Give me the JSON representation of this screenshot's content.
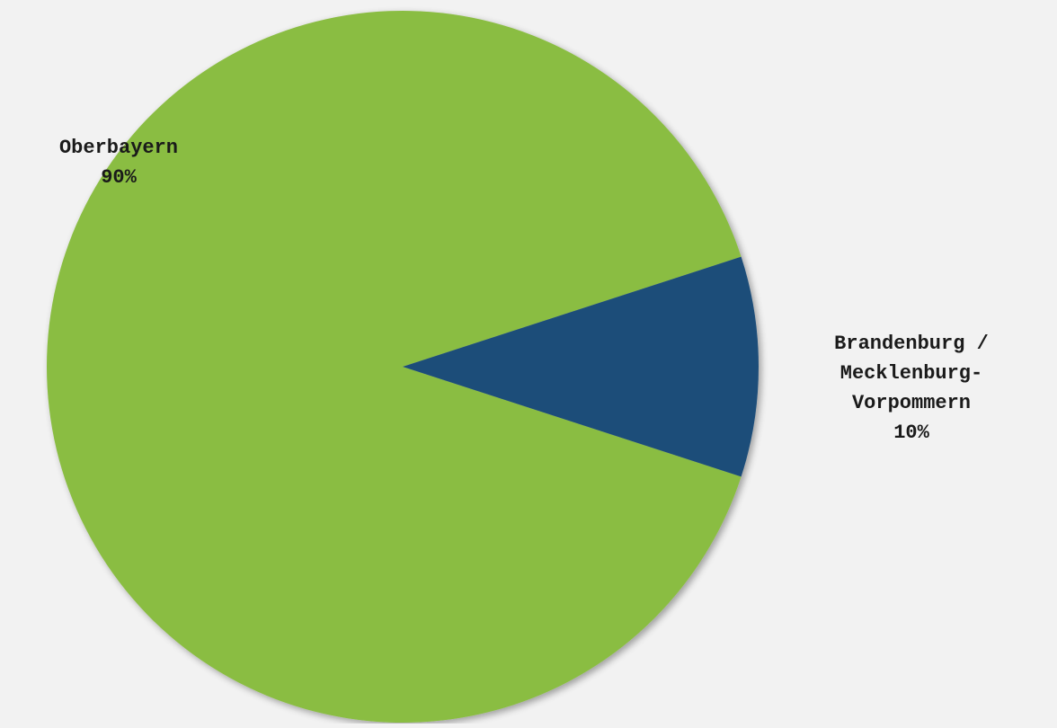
{
  "chart_data": {
    "type": "pie",
    "title": "",
    "slices": [
      {
        "label_lines": [
          "Oberbayern"
        ],
        "value": 90,
        "percent_label": "90%",
        "color": "#8abd43"
      },
      {
        "label_lines": [
          "Brandenburg /",
          "Mecklenburg-",
          "Vorpommern"
        ],
        "value": 10,
        "percent_label": "10%",
        "color": "#1f4e79"
      }
    ],
    "start_angle_deg": -18,
    "direction": "counterclockwise",
    "legend": "none",
    "labels": "outside-with-percent"
  }
}
